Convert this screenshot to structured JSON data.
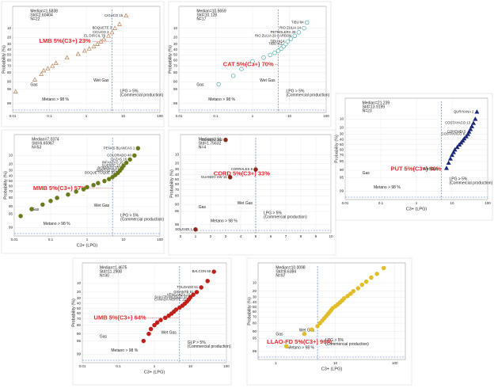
{
  "chart_data": [
    {
      "type": "scatter",
      "xscale": "log",
      "xlim": [
        0.01,
        100
      ],
      "xticks": [
        0.01,
        0.1,
        1,
        10,
        100
      ],
      "ylim": [
        1,
        99.7
      ],
      "yticks": [
        10,
        20,
        30,
        40,
        50,
        60,
        70,
        80,
        90,
        95,
        99
      ],
      "grid": true,
      "y_label": "Probability (%)",
      "annotation": "LMB 5%(C3+) 23%",
      "stats": [
        "Median=1.5838",
        "Std=2.60404",
        "N=22"
      ],
      "gas_label": "Gas",
      "wet_gas_label": "Wet Gas",
      "methane_label": "Metano > 98 %",
      "lpg_label": "LPG > 5%",
      "lpg_note": "(Commercial production)",
      "ref_x": 5,
      "marker": "triangle",
      "filled": false,
      "color": "#b87d4f",
      "x": [
        0.012,
        0.04,
        0.06,
        0.07,
        0.09,
        0.12,
        0.15,
        0.3,
        0.6,
        0.9,
        1.2,
        1.6,
        2,
        2.5,
        3,
        4,
        5,
        6,
        8,
        12
      ],
      "values": [
        96,
        88,
        82,
        77,
        74,
        70,
        65,
        55,
        48,
        42,
        38,
        34,
        30,
        26,
        22,
        18,
        14,
        10,
        7,
        3
      ],
      "point_labels": [
        null,
        null,
        null,
        null,
        null,
        null,
        null,
        null,
        null,
        null,
        null,
        null,
        null,
        null,
        null,
        "EL DIFICIL 78",
        "CICUCO 3",
        "BOQUETE 3",
        null,
        "CIGUCO 15"
      ]
    },
    {
      "type": "scatter",
      "xscale": "log",
      "xlim": [
        0.01,
        100
      ],
      "xticks": [
        0.01,
        0.1,
        1,
        10,
        100
      ],
      "ylim": [
        1,
        99.7
      ],
      "yticks": [
        10,
        20,
        30,
        40,
        50,
        60,
        70,
        80,
        90,
        95,
        99
      ],
      "grid": true,
      "y_label": "Probability (%)",
      "annotation": "CAT 5%(C3+) 70%",
      "stats": [
        "Median=10.5659",
        "Std=10.128",
        "N=17"
      ],
      "gas_label": "Gas",
      "wet_gas_label": "Wet Gas",
      "methane_label": "Metano > 98 %",
      "lpg_label": "LPG > 5%",
      "lpg_note": "(Commercial production)",
      "ref_x": 5,
      "marker": "circle",
      "filled": false,
      "color": "#4fa9a9",
      "x": [
        0.12,
        0.3,
        0.5,
        1,
        2,
        3,
        4,
        5,
        6,
        7,
        8,
        9,
        11,
        14,
        18,
        25,
        30
      ],
      "values": [
        92,
        84,
        75,
        62,
        55,
        50,
        46,
        42,
        38,
        34,
        30,
        26,
        22,
        18,
        14,
        10,
        6
      ],
      "point_labels": [
        null,
        null,
        null,
        null,
        null,
        null,
        null,
        null,
        null,
        null,
        "TIBU 411",
        "TIBU 414",
        null,
        "RIO ZULIA 29 CARBON",
        "PETROLERA 29",
        "RIO ZULIA 14",
        "TIBU 84"
      ]
    },
    {
      "type": "scatter",
      "xscale": "log",
      "xlim": [
        0.01,
        100
      ],
      "xticks": [
        0.01,
        0.1,
        1,
        10,
        100
      ],
      "ylim": [
        1,
        99.7
      ],
      "yticks": [
        10,
        20,
        30,
        40,
        50,
        60,
        70,
        80,
        90,
        95,
        99
      ],
      "grid": true,
      "y_label": "Probability (%)",
      "x_label": "C3+ (LPG)",
      "annotation": "PUT 5%(C3+) 90%",
      "stats": [
        "Median=21.239",
        "Std=13.9199",
        "N=23"
      ],
      "gas_label": "Gas",
      "wet_gas_label": "Wet Gas",
      "methane_label": "Metano > 98 %",
      "lpg_label": "LPG > 5%",
      "lpg_note": "(Commercial production)",
      "ref_x": 5,
      "marker": "triangle",
      "filled": true,
      "color": "#1c2878",
      "x": [
        7,
        8,
        9,
        10,
        11,
        12,
        14,
        16,
        18,
        20,
        22,
        25,
        28,
        30,
        33,
        36,
        40,
        45,
        50
      ],
      "values": [
        88,
        82,
        76,
        70,
        65,
        60,
        55,
        50,
        46,
        42,
        38,
        34,
        30,
        26,
        22,
        18,
        14,
        10,
        5
      ],
      "point_labels": [
        null,
        null,
        null,
        null,
        null,
        null,
        null,
        null,
        null,
        null,
        null,
        null,
        "COSTAYACO 8",
        "COHEMBI 5",
        null,
        null,
        "COSTAYACO 13",
        null,
        "QURIYANA 2"
      ]
    },
    {
      "type": "scatter",
      "xscale": "log",
      "xlim": [
        0.01,
        100
      ],
      "xticks": [
        0.01,
        0.1,
        1,
        10,
        100
      ],
      "ylim": [
        1,
        99.7
      ],
      "yticks": [
        10,
        20,
        30,
        40,
        50,
        60,
        70,
        80,
        90,
        95,
        99
      ],
      "grid": true,
      "y_label": "Probability (%)",
      "x_label": "C3+ (LPG)",
      "annotation": "MMB 5%(C3+) 57%",
      "stats": [
        "Median=7.0374",
        "Std=6.65967",
        "N=53"
      ],
      "gas_label": "Gas",
      "wet_gas_label": "Wet Gas",
      "methane_label": "Metano > 98 %",
      "lpg_label": "LPG > 5%",
      "lpg_note": "(Commercial production)",
      "ref_x": 5,
      "marker": "circle",
      "filled": true,
      "color": "#6b7a1a",
      "x": [
        0.015,
        0.03,
        0.06,
        0.1,
        0.15,
        0.3,
        0.5,
        0.8,
        1,
        1.5,
        2,
        3,
        4,
        5,
        6,
        7,
        8,
        9,
        10,
        12,
        15,
        20,
        25
      ],
      "values": [
        96,
        92,
        88,
        84,
        80,
        75,
        70,
        66,
        62,
        58,
        54,
        50,
        46,
        42,
        38,
        34,
        30,
        26,
        22,
        18,
        14,
        10,
        5
      ],
      "point_labels": [
        null,
        null,
        null,
        null,
        null,
        null,
        null,
        null,
        null,
        null,
        null,
        null,
        null,
        null,
        null,
        "BOQUE TOQUE 10",
        "SANTOS 102",
        "BONANZA 33",
        "SUERTE 23",
        "INFANTAS 16",
        "GAZAS 16",
        "COLORADO 40",
        "PEÑAS BLANCAS 1"
      ]
    },
    {
      "type": "scatter",
      "xscale": "linear",
      "xlim": [
        0,
        10
      ],
      "xticks": [
        0,
        1,
        2,
        3,
        4,
        5,
        6,
        7,
        8,
        9,
        10
      ],
      "ylim": [
        1,
        99.7
      ],
      "yticks": [
        10,
        20,
        30,
        40,
        50,
        60,
        70,
        80,
        90,
        95,
        99
      ],
      "grid": true,
      "y_label": "Probability (%)",
      "annotation": "CORD 5%(C3+) 33%",
      "stats": [
        "Median=3.91",
        "Std=1.75632",
        "N=4"
      ],
      "gas_label": "Gas",
      "wet_gas_label": "Wet Gas",
      "methane_label": "Metano > 98 %",
      "lpg_label": "LPG > 5%",
      "lpg_note": "(Commercial production)",
      "ref_x": 5,
      "marker": "circle",
      "filled": true,
      "color": "#8b2a1a",
      "x": [
        3,
        3.3,
        5,
        1
      ],
      "values": [
        2,
        45,
        30,
        99.5
      ],
      "point_labels": [
        "GUANDO 152",
        "GUANDO SW 15",
        "CORRALES 8",
        "SOLFARI 1"
      ]
    },
    {
      "type": "scatter",
      "xscale": "log",
      "xlim": [
        0.01,
        100
      ],
      "xticks": [
        0.01,
        0.1,
        1,
        10,
        100
      ],
      "ylim": [
        1,
        99.7
      ],
      "yticks": [
        10,
        20,
        30,
        40,
        50,
        60,
        70,
        80,
        90,
        95,
        99
      ],
      "grid": true,
      "y_label": "Probability (%)",
      "x_label": "C3+ (LPG)",
      "annotation": "UMB 5%(C3+) 64%",
      "stats": [
        "Median=1.4675",
        "Std=11.2908",
        "N=30"
      ],
      "gas_label": "Gas",
      "wet_gas_label": "Wet Gas",
      "methane_label": "Metano > 98 %",
      "lpg_label": "GLP > 5%",
      "lpg_note": "(Commercial production)",
      "ref_x": 5,
      "marker": "circle",
      "filled": true,
      "color": "#c0201a",
      "x": [
        0.5,
        0.7,
        0.8,
        1,
        1.2,
        1.5,
        2,
        2.5,
        3,
        3.5,
        4,
        5,
        6,
        7,
        8,
        9,
        10,
        12,
        15,
        20,
        30,
        45
      ],
      "values": [
        95,
        90,
        85,
        80,
        76,
        72,
        68,
        64,
        60,
        56,
        52,
        48,
        44,
        40,
        36,
        32,
        28,
        24,
        20,
        14,
        8,
        3
      ],
      "point_labels": [
        null,
        null,
        null,
        null,
        null,
        null,
        null,
        null,
        null,
        null,
        null,
        null,
        null,
        null,
        null,
        "CANADA NORTE 11",
        "SAN FRANCISCO 32",
        "VENGANZA 22",
        "GIGANTE 61",
        "TOLDADO 61",
        null,
        "BALCON 69"
      ]
    },
    {
      "type": "scatter",
      "xscale": "log",
      "xlim": [
        0.5,
        150
      ],
      "xticks": [
        1,
        10,
        100
      ],
      "ylim": [
        1,
        99.7
      ],
      "yticks": [
        10,
        20,
        30,
        40,
        50,
        60,
        70,
        80,
        90,
        95,
        99
      ],
      "grid": true,
      "y_label": "Probability (%)",
      "x_label": "C3+ (LPG)",
      "annotation": "LLAO-FD 5%(C3+) 96%",
      "stats": [
        "Median=10.0098",
        "Std=8.6384",
        "N=97"
      ],
      "gas_label": "Gas",
      "wet_gas_label": "Wet Gas",
      "methane_label": "Metano > 98 %",
      "lpg_label": "LPG > 5%",
      "lpg_note": "(Commercial production)",
      "ref_x": 5,
      "marker": "circle",
      "filled": true,
      "color": "#e2bd2a",
      "x": [
        1.5,
        3,
        4,
        5,
        5.5,
        6,
        6.5,
        7,
        7.5,
        8,
        8.5,
        9,
        10,
        11,
        12,
        13,
        14,
        16,
        18,
        20,
        24,
        28,
        33,
        40,
        50,
        65
      ],
      "values": [
        98,
        92,
        88,
        84,
        80,
        76,
        72,
        68,
        64,
        60,
        56,
        52,
        48,
        44,
        40,
        36,
        32,
        28,
        24,
        20,
        16,
        12,
        9,
        6,
        4,
        2
      ],
      "point_labels": [
        null,
        null,
        null,
        null,
        null,
        null,
        null,
        null,
        null,
        null,
        null,
        null,
        null,
        null,
        null,
        null,
        null,
        null,
        null,
        null,
        null,
        null,
        null,
        null,
        null,
        null
      ]
    }
  ]
}
